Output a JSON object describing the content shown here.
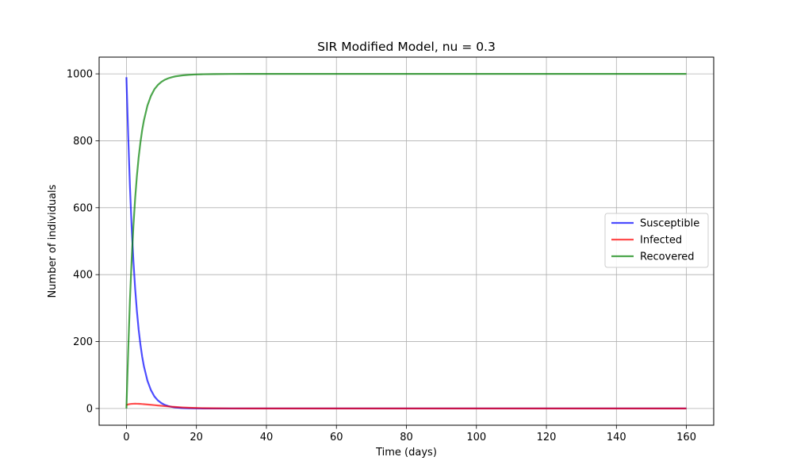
{
  "chart_data": {
    "type": "line",
    "title": "SIR Modified Model, nu = 0.3",
    "xlabel": "Time (days)",
    "ylabel": "Number of individuals",
    "xlim": [
      -7.8,
      167.8
    ],
    "ylim": [
      -50,
      1050
    ],
    "xticks": [
      0,
      20,
      40,
      60,
      80,
      100,
      120,
      140,
      160
    ],
    "yticks": [
      0,
      200,
      400,
      600,
      800,
      1000
    ],
    "grid": true,
    "legend_position": "center-right",
    "x": [
      0,
      0.5,
      1,
      1.5,
      2,
      2.5,
      3,
      3.5,
      4,
      4.5,
      5,
      6,
      7,
      8,
      9,
      10,
      11,
      12,
      13,
      14,
      16,
      18,
      20,
      22,
      25,
      30,
      35,
      40,
      50,
      60,
      80,
      100,
      120,
      140,
      160
    ],
    "series": [
      {
        "name": "Susceptible",
        "color": "#0000ff",
        "values": [
          990,
          818,
          665,
          540,
          440,
          357,
          290,
          235,
          191,
          155,
          126,
          83,
          55,
          36,
          24,
          16,
          10.5,
          7,
          4.6,
          3,
          1.3,
          0.6,
          0.25,
          0.1,
          0.03,
          0,
          0,
          0,
          0,
          0,
          0,
          0,
          0,
          0,
          0
        ]
      },
      {
        "name": "Infected",
        "color": "#ff0000",
        "values": [
          10,
          12.2,
          13.3,
          13.9,
          14.2,
          14.3,
          14.2,
          14.0,
          13.7,
          13.3,
          12.9,
          12.0,
          11.0,
          10.0,
          9.0,
          8.0,
          7.0,
          6.1,
          5.3,
          4.5,
          3.2,
          2.2,
          1.5,
          1.0,
          0.6,
          0.2,
          0.1,
          0.05,
          0,
          0,
          0,
          0,
          0,
          0,
          0
        ]
      },
      {
        "name": "Recovered",
        "color": "#008000",
        "values": [
          0,
          170,
          322,
          446,
          546,
          629,
          696,
          751,
          795,
          832,
          861,
          905,
          934,
          954,
          967,
          976,
          982.5,
          986.9,
          990.1,
          992.5,
          995.5,
          997.2,
          998.25,
          998.9,
          999.37,
          999.8,
          999.9,
          999.95,
          1000,
          1000,
          1000,
          1000,
          1000,
          1000,
          1000
        ]
      }
    ]
  }
}
